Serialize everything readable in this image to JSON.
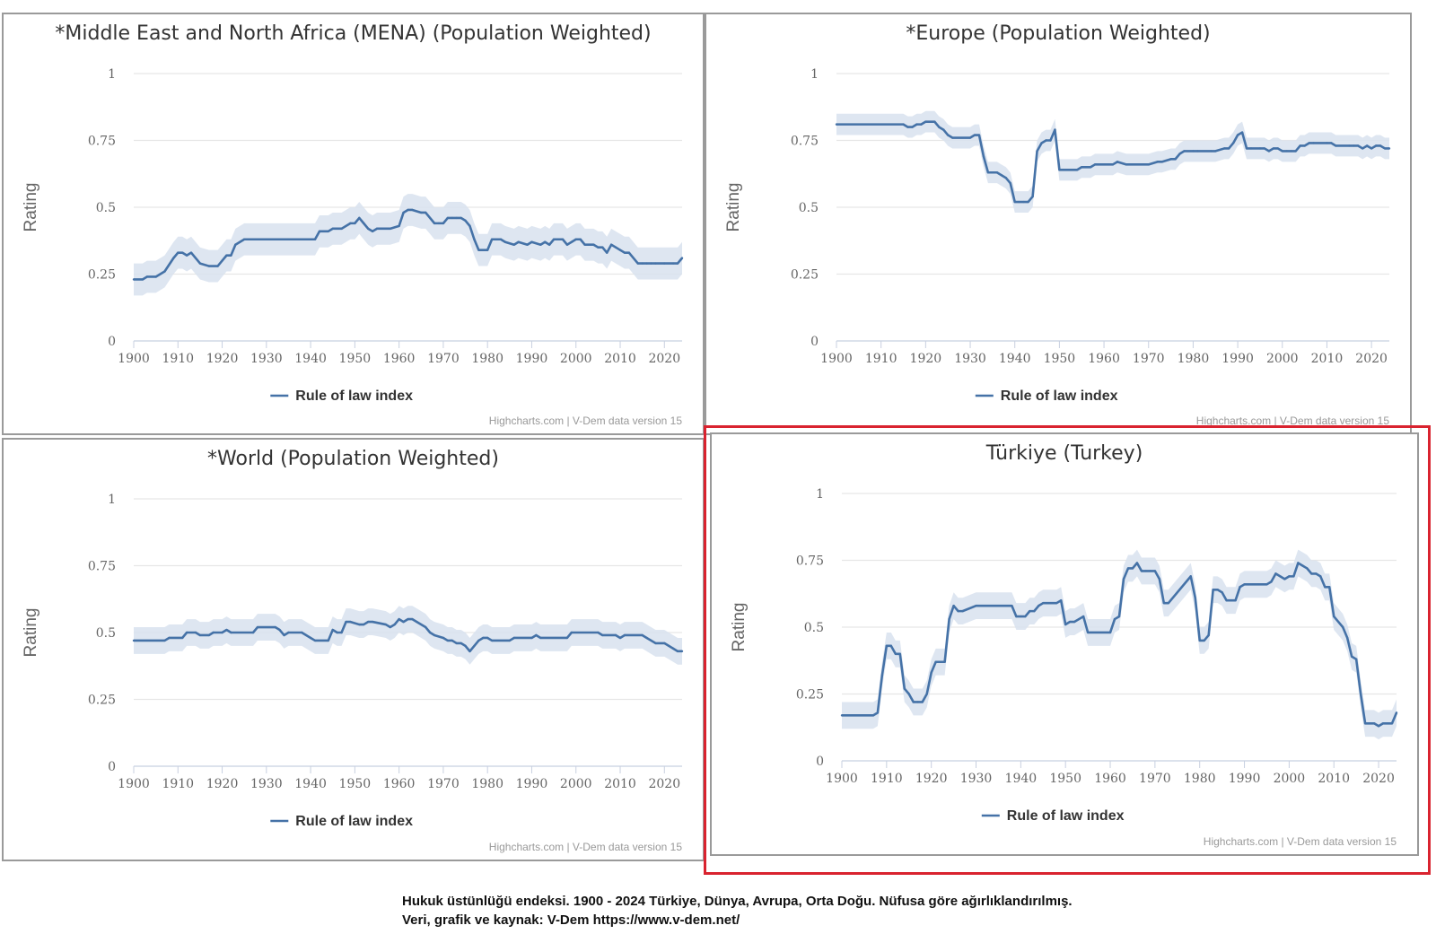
{
  "chart_data": [
    {
      "type": "line",
      "title": "*Middle East and North Africa (MENA) (Population Weighted)",
      "ylabel": "Rating",
      "xlabel": "",
      "xlim": [
        1900,
        2024
      ],
      "ylim": [
        0,
        1
      ],
      "y_ticks": [
        "0",
        "0.25",
        "0.5",
        "0.75",
        "1"
      ],
      "x_ticks": [
        "1900",
        "1910",
        "1920",
        "1930",
        "1940",
        "1950",
        "1960",
        "1970",
        "1980",
        "1990",
        "2000",
        "2010",
        "2020"
      ],
      "grid": true,
      "legend": "bottom-center",
      "credits": "Highcharts.com | V-Dem data version 15",
      "series": [
        {
          "name": "Rule of law index",
          "color": "#4572a7",
          "x": [
            1900,
            1902,
            1903,
            1905,
            1907,
            1909,
            1910,
            1911,
            1912,
            1913,
            1915,
            1917,
            1919,
            1920,
            1921,
            1922,
            1923,
            1925,
            1930,
            1935,
            1941,
            1942,
            1944,
            1945,
            1947,
            1949,
            1950,
            1951,
            1952,
            1953,
            1954,
            1955,
            1956,
            1958,
            1960,
            1961,
            1962,
            1963,
            1965,
            1966,
            1968,
            1969,
            1970,
            1971,
            1972,
            1973,
            1974,
            1975,
            1976,
            1977,
            1978,
            1979,
            1980,
            1981,
            1983,
            1984,
            1986,
            1987,
            1989,
            1990,
            1992,
            1993,
            1994,
            1995,
            1996,
            1997,
            1998,
            1999,
            2000,
            2001,
            2002,
            2003,
            2004,
            2005,
            2006,
            2007,
            2008,
            2009,
            2010,
            2011,
            2012,
            2014,
            2015,
            2016,
            2017,
            2018,
            2020,
            2022,
            2023,
            2024
          ],
          "y": [
            0.23,
            0.23,
            0.24,
            0.24,
            0.26,
            0.31,
            0.33,
            0.33,
            0.32,
            0.33,
            0.29,
            0.28,
            0.28,
            0.3,
            0.32,
            0.32,
            0.36,
            0.38,
            0.38,
            0.38,
            0.38,
            0.41,
            0.41,
            0.42,
            0.42,
            0.44,
            0.44,
            0.46,
            0.44,
            0.42,
            0.41,
            0.42,
            0.42,
            0.42,
            0.43,
            0.48,
            0.49,
            0.49,
            0.48,
            0.48,
            0.44,
            0.44,
            0.44,
            0.46,
            0.46,
            0.46,
            0.46,
            0.45,
            0.43,
            0.38,
            0.34,
            0.34,
            0.34,
            0.38,
            0.38,
            0.37,
            0.36,
            0.37,
            0.36,
            0.37,
            0.36,
            0.37,
            0.36,
            0.38,
            0.38,
            0.38,
            0.36,
            0.37,
            0.38,
            0.38,
            0.36,
            0.36,
            0.36,
            0.35,
            0.35,
            0.33,
            0.36,
            0.35,
            0.34,
            0.33,
            0.33,
            0.29,
            0.29,
            0.29,
            0.29,
            0.29,
            0.29,
            0.29,
            0.29,
            0.31
          ],
          "band": 0.06
        }
      ]
    },
    {
      "type": "line",
      "title": "*Europe (Population Weighted)",
      "ylabel": "Rating",
      "xlabel": "",
      "xlim": [
        1900,
        2024
      ],
      "ylim": [
        0,
        1
      ],
      "y_ticks": [
        "0",
        "0.25",
        "0.5",
        "0.75",
        "1"
      ],
      "x_ticks": [
        "1900",
        "1910",
        "1920",
        "1930",
        "1940",
        "1950",
        "1960",
        "1970",
        "1980",
        "1990",
        "2000",
        "2010",
        "2020"
      ],
      "grid": true,
      "legend": "bottom-center",
      "credits": "Highcharts.com | V-Dem data version 15",
      "series": [
        {
          "name": "Rule of law index",
          "color": "#4572a7",
          "x": [
            1900,
            1915,
            1916,
            1917,
            1918,
            1919,
            1920,
            1922,
            1923,
            1924,
            1925,
            1926,
            1930,
            1931,
            1932,
            1933,
            1934,
            1935,
            1936,
            1937,
            1938,
            1939,
            1940,
            1941,
            1942,
            1943,
            1944,
            1945,
            1946,
            1947,
            1948,
            1949,
            1950,
            1951,
            1954,
            1955,
            1956,
            1957,
            1958,
            1959,
            1960,
            1961,
            1962,
            1963,
            1965,
            1966,
            1969,
            1970,
            1972,
            1973,
            1975,
            1976,
            1977,
            1978,
            1980,
            1981,
            1984,
            1985,
            1987,
            1988,
            1989,
            1990,
            1991,
            1992,
            1993,
            1995,
            1996,
            1997,
            1998,
            1999,
            2000,
            2001,
            2002,
            2003,
            2004,
            2005,
            2006,
            2007,
            2010,
            2011,
            2012,
            2015,
            2016,
            2017,
            2018,
            2019,
            2020,
            2021,
            2022,
            2023,
            2024
          ],
          "y": [
            0.81,
            0.81,
            0.8,
            0.8,
            0.81,
            0.81,
            0.82,
            0.82,
            0.8,
            0.79,
            0.77,
            0.76,
            0.76,
            0.77,
            0.77,
            0.69,
            0.63,
            0.63,
            0.63,
            0.62,
            0.61,
            0.59,
            0.52,
            0.52,
            0.52,
            0.52,
            0.54,
            0.71,
            0.74,
            0.75,
            0.75,
            0.79,
            0.64,
            0.64,
            0.64,
            0.65,
            0.65,
            0.65,
            0.66,
            0.66,
            0.66,
            0.66,
            0.66,
            0.67,
            0.66,
            0.66,
            0.66,
            0.66,
            0.67,
            0.67,
            0.68,
            0.68,
            0.7,
            0.71,
            0.71,
            0.71,
            0.71,
            0.71,
            0.72,
            0.72,
            0.74,
            0.77,
            0.78,
            0.72,
            0.72,
            0.72,
            0.72,
            0.71,
            0.72,
            0.72,
            0.71,
            0.71,
            0.71,
            0.71,
            0.73,
            0.73,
            0.74,
            0.74,
            0.74,
            0.74,
            0.73,
            0.73,
            0.73,
            0.73,
            0.72,
            0.73,
            0.72,
            0.73,
            0.73,
            0.72,
            0.72
          ],
          "band": 0.04
        }
      ]
    },
    {
      "type": "line",
      "title": "*World (Population Weighted)",
      "ylabel": "Rating",
      "xlabel": "",
      "xlim": [
        1900,
        2024
      ],
      "ylim": [
        0,
        1
      ],
      "y_ticks": [
        "0",
        "0.25",
        "0.5",
        "0.75",
        "1"
      ],
      "x_ticks": [
        "1900",
        "1910",
        "1920",
        "1930",
        "1940",
        "1950",
        "1960",
        "1970",
        "1980",
        "1990",
        "2000",
        "2010",
        "2020"
      ],
      "grid": true,
      "legend": "bottom-center",
      "credits": "Highcharts.com | V-Dem data version 15",
      "series": [
        {
          "name": "Rule of law index",
          "color": "#4572a7",
          "x": [
            1900,
            1907,
            1908,
            1911,
            1912,
            1914,
            1915,
            1917,
            1918,
            1920,
            1921,
            1922,
            1927,
            1928,
            1932,
            1933,
            1934,
            1935,
            1938,
            1939,
            1940,
            1941,
            1944,
            1945,
            1946,
            1947,
            1948,
            1949,
            1951,
            1952,
            1953,
            1954,
            1957,
            1958,
            1959,
            1960,
            1961,
            1962,
            1963,
            1964,
            1966,
            1967,
            1968,
            1970,
            1971,
            1972,
            1973,
            1974,
            1975,
            1976,
            1977,
            1978,
            1979,
            1980,
            1981,
            1985,
            1986,
            1990,
            1991,
            1992,
            1998,
            1999,
            2005,
            2006,
            2009,
            2010,
            2011,
            2015,
            2016,
            2017,
            2018,
            2020,
            2021,
            2022,
            2023,
            2024
          ],
          "y": [
            0.47,
            0.47,
            0.48,
            0.48,
            0.5,
            0.5,
            0.49,
            0.49,
            0.5,
            0.5,
            0.51,
            0.5,
            0.5,
            0.52,
            0.52,
            0.51,
            0.49,
            0.5,
            0.5,
            0.49,
            0.48,
            0.47,
            0.47,
            0.51,
            0.5,
            0.5,
            0.54,
            0.54,
            0.53,
            0.53,
            0.54,
            0.54,
            0.53,
            0.52,
            0.53,
            0.55,
            0.54,
            0.55,
            0.55,
            0.54,
            0.52,
            0.5,
            0.49,
            0.48,
            0.47,
            0.47,
            0.46,
            0.46,
            0.45,
            0.43,
            0.45,
            0.47,
            0.48,
            0.48,
            0.47,
            0.47,
            0.48,
            0.48,
            0.49,
            0.48,
            0.48,
            0.5,
            0.5,
            0.49,
            0.49,
            0.48,
            0.49,
            0.49,
            0.48,
            0.47,
            0.46,
            0.46,
            0.45,
            0.44,
            0.43,
            0.43
          ],
          "band": 0.05
        }
      ]
    },
    {
      "type": "line",
      "title": "Türkiye (Turkey)",
      "ylabel": "Rating",
      "xlabel": "",
      "xlim": [
        1900,
        2024
      ],
      "ylim": [
        0,
        1
      ],
      "y_ticks": [
        "0",
        "0.25",
        "0.5",
        "0.75",
        "1"
      ],
      "x_ticks": [
        "1900",
        "1910",
        "1920",
        "1930",
        "1940",
        "1950",
        "1960",
        "1970",
        "1980",
        "1990",
        "2000",
        "2010",
        "2020"
      ],
      "grid": true,
      "legend": "bottom-center",
      "credits": "Highcharts.com | V-Dem data version 15",
      "series": [
        {
          "name": "Rule of law index",
          "color": "#4572a7",
          "x": [
            1900,
            1907,
            1908,
            1909,
            1910,
            1911,
            1912,
            1913,
            1914,
            1915,
            1916,
            1917,
            1918,
            1919,
            1920,
            1921,
            1922,
            1923,
            1924,
            1925,
            1926,
            1927,
            1930,
            1938,
            1939,
            1940,
            1941,
            1942,
            1943,
            1944,
            1945,
            1946,
            1948,
            1949,
            1950,
            1951,
            1952,
            1953,
            1954,
            1955,
            1960,
            1961,
            1962,
            1963,
            1964,
            1965,
            1966,
            1967,
            1968,
            1969,
            1970,
            1971,
            1972,
            1973,
            1978,
            1979,
            1980,
            1981,
            1982,
            1983,
            1984,
            1985,
            1986,
            1987,
            1988,
            1989,
            1990,
            1991,
            1992,
            1993,
            1995,
            1996,
            1997,
            1998,
            1999,
            2000,
            2001,
            2002,
            2003,
            2004,
            2005,
            2006,
            2007,
            2008,
            2009,
            2010,
            2011,
            2012,
            2013,
            2014,
            2015,
            2016,
            2017,
            2018,
            2019,
            2020,
            2021,
            2022,
            2023,
            2024
          ],
          "y": [
            0.17,
            0.17,
            0.18,
            0.32,
            0.43,
            0.43,
            0.4,
            0.4,
            0.27,
            0.25,
            0.22,
            0.22,
            0.22,
            0.25,
            0.33,
            0.37,
            0.37,
            0.37,
            0.53,
            0.58,
            0.56,
            0.56,
            0.58,
            0.58,
            0.54,
            0.54,
            0.54,
            0.56,
            0.56,
            0.58,
            0.59,
            0.59,
            0.59,
            0.6,
            0.51,
            0.52,
            0.52,
            0.53,
            0.54,
            0.48,
            0.48,
            0.53,
            0.54,
            0.68,
            0.72,
            0.72,
            0.74,
            0.71,
            0.71,
            0.71,
            0.71,
            0.68,
            0.59,
            0.59,
            0.69,
            0.61,
            0.45,
            0.45,
            0.47,
            0.64,
            0.64,
            0.63,
            0.6,
            0.6,
            0.6,
            0.65,
            0.66,
            0.66,
            0.66,
            0.66,
            0.66,
            0.67,
            0.7,
            0.69,
            0.68,
            0.69,
            0.69,
            0.74,
            0.73,
            0.72,
            0.7,
            0.7,
            0.69,
            0.65,
            0.65,
            0.54,
            0.52,
            0.5,
            0.46,
            0.39,
            0.38,
            0.25,
            0.14,
            0.14,
            0.14,
            0.13,
            0.14,
            0.14,
            0.14,
            0.18
          ],
          "band": 0.05
        }
      ]
    }
  ],
  "caption": {
    "line1": "Hukuk üstünlüğü endeksi. 1900 - 2024 Türkiye, Dünya, Avrupa, Orta Doğu. Nüfusa göre ağırlıklandırılmış.",
    "line2": "Veri, grafik ve kaynak: V-Dem https://www.v-dem.net/"
  },
  "colors": {
    "series": "#4572a7",
    "band": "#d8e2ef",
    "grid": "#e6e6e6",
    "panel_border": "#9a9a9a",
    "highlight_border": "#d9232f"
  }
}
